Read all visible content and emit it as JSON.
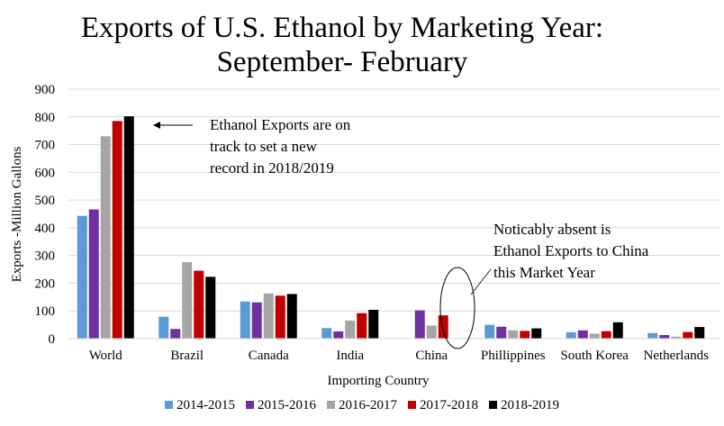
{
  "chart_data": {
    "type": "bar",
    "title": "Exports of U.S. Ethanol by Marketing Year:",
    "subtitle": "September- February",
    "xlabel": "Importing Country",
    "ylabel": "Exports -Million Gallons",
    "ylim": [
      0,
      900
    ],
    "yticks": [
      0,
      100,
      200,
      300,
      400,
      500,
      600,
      700,
      800,
      900
    ],
    "grid": true,
    "legend_position": "bottom",
    "categories": [
      "World",
      "Brazil",
      "Canada",
      "India",
      "China",
      "Phillippines",
      "South Korea",
      "Netherlands"
    ],
    "series": [
      {
        "name": "2014-2015",
        "color": "#5b9bd5",
        "values": [
          443,
          79,
          134,
          38,
          0,
          50,
          23,
          20
        ]
      },
      {
        "name": "2015-2016",
        "color": "#7030a0",
        "values": [
          466,
          35,
          131,
          26,
          102,
          43,
          30,
          13
        ]
      },
      {
        "name": "2016-2017",
        "color": "#a5a5a5",
        "values": [
          730,
          276,
          163,
          65,
          47,
          30,
          18,
          7
        ]
      },
      {
        "name": "2017-2018",
        "color": "#c00000",
        "values": [
          785,
          245,
          155,
          92,
          84,
          28,
          27,
          24
        ]
      },
      {
        "name": "2018-2019",
        "color": "#000000",
        "values": [
          802,
          223,
          161,
          104,
          0,
          37,
          59,
          42
        ]
      }
    ],
    "annotations": [
      {
        "text": "Ethanol Exports are on track to set a new record in 2018/2019",
        "target": "World"
      },
      {
        "text": "Noticably absent is Ethanol Exports to China this Market Year",
        "target": "China"
      }
    ]
  },
  "annotations": {
    "world_note": [
      "Ethanol Exports are on",
      "track to set a new",
      "record in 2018/2019"
    ],
    "china_note": [
      "Noticably absent is",
      "Ethanol Exports to China",
      "this Market Year"
    ]
  }
}
